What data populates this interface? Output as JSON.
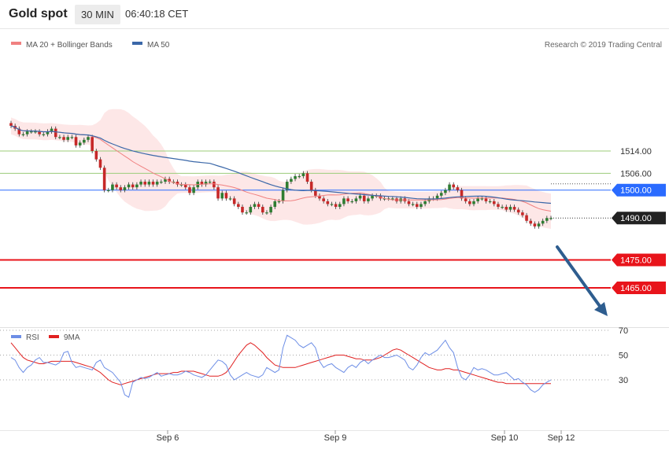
{
  "header": {
    "instrument": "Gold spot",
    "timeframe": "30 MIN",
    "time": "06:40:18 CET"
  },
  "legend": {
    "ma20_bb": "MA 20 + Bollinger Bands",
    "ma50": "MA 50",
    "copyright": "Research © 2019 Trading Central"
  },
  "rsi_legend": {
    "rsi": "RSI",
    "ma9": "9MA"
  },
  "colors": {
    "support_line": "#2a6bff",
    "resistance_line": "#9ccc7a",
    "target_line": "#e8141b",
    "current_price": "#222222",
    "arrow": "#2e5d8f",
    "ma20": "#f08080",
    "ma50": "#3a67a8",
    "rsi": "#6d8ee6",
    "rsi_ma": "#e02020",
    "bull_candle": "#2e7d32",
    "bear_candle": "#c62828"
  },
  "chart_data": [
    {
      "type": "candlestick",
      "title": "Gold spot",
      "price_levels": [
        {
          "label": "1514.00",
          "value": 1514,
          "kind": "resistance"
        },
        {
          "label": "1506.00",
          "value": 1506,
          "kind": "resistance"
        },
        {
          "label": "1500.00",
          "value": 1500,
          "kind": "pivot"
        },
        {
          "label": "1490.00",
          "value": 1490,
          "kind": "last"
        },
        {
          "label": "1475.00",
          "value": 1475,
          "kind": "target"
        },
        {
          "label": "1465.00",
          "value": 1465,
          "kind": "target"
        }
      ],
      "x_ticks": [
        "Sep 6",
        "Sep 9",
        "Sep 10",
        "Sep 12"
      ],
      "series": [
        {
          "name": "MA 20 + Bollinger Bands"
        },
        {
          "name": "MA 50"
        }
      ],
      "closes": [
        1523,
        1522,
        1520,
        1520,
        1521,
        1521,
        1521,
        1520,
        1520,
        1521,
        1522,
        1519,
        1519,
        1518,
        1519,
        1519,
        1516,
        1517,
        1518,
        1519,
        1514,
        1511,
        1508,
        1500,
        1500,
        1502,
        1501,
        1500,
        1501,
        1502,
        1501,
        1502,
        1503,
        1502,
        1503,
        1502,
        1503,
        1503,
        1504,
        1503,
        1503,
        1502,
        1502,
        1501,
        1499,
        1501,
        1503,
        1502,
        1503,
        1503,
        1501,
        1497,
        1499,
        1497,
        1497,
        1495,
        1494,
        1492,
        1492,
        1494,
        1495,
        1494,
        1492,
        1492,
        1494,
        1496,
        1496,
        1500,
        1503,
        1504,
        1505,
        1505,
        1506,
        1503,
        1500,
        1498,
        1497,
        1496,
        1495,
        1495,
        1494,
        1495,
        1497,
        1496,
        1496,
        1497,
        1498,
        1496,
        1497,
        1498,
        1498,
        1497,
        1497,
        1497,
        1497,
        1496,
        1497,
        1496,
        1495,
        1495,
        1494,
        1495,
        1496,
        1497,
        1497,
        1498,
        1499,
        1500,
        1502,
        1501,
        1500,
        1497,
        1496,
        1495,
        1496,
        1497,
        1497,
        1496,
        1496,
        1495,
        1494,
        1494,
        1493,
        1494,
        1493,
        1492,
        1491,
        1489,
        1488,
        1487,
        1488,
        1489,
        1490,
        1490
      ],
      "y_range": [
        1460,
        1530
      ]
    },
    {
      "type": "line",
      "title": "RSI",
      "series": [
        {
          "name": "RSI"
        },
        {
          "name": "9MA"
        }
      ],
      "y_ticks": [
        30,
        50,
        70
      ],
      "rsi": [
        48,
        46,
        40,
        36,
        40,
        42,
        46,
        48,
        44,
        44,
        43,
        42,
        44,
        52,
        53,
        44,
        40,
        41,
        40,
        39,
        38,
        44,
        46,
        40,
        38,
        36,
        32,
        28,
        18,
        16,
        28,
        30,
        32,
        31,
        32,
        34,
        36,
        33,
        34,
        35,
        34,
        34,
        35,
        37,
        36,
        34,
        33,
        32,
        34,
        38,
        42,
        46,
        45,
        42,
        34,
        30,
        32,
        34,
        36,
        34,
        33,
        32,
        34,
        40,
        38,
        36,
        38,
        56,
        66,
        64,
        62,
        58,
        56,
        58,
        60,
        56,
        45,
        40,
        42,
        43,
        40,
        38,
        36,
        40,
        42,
        40,
        44,
        46,
        43,
        46,
        48,
        50,
        48,
        48,
        49,
        50,
        48,
        46,
        40,
        38,
        42,
        48,
        52,
        50,
        52,
        54,
        58,
        62,
        56,
        52,
        40,
        32,
        30,
        34,
        40,
        38,
        39,
        38,
        36,
        34,
        34,
        35,
        36,
        33,
        30,
        31,
        28,
        26,
        22,
        20,
        22,
        26,
        28,
        30
      ],
      "rsi_ma": [
        60,
        56,
        52,
        48,
        46,
        45,
        44,
        43,
        43,
        44,
        45,
        45,
        45,
        45,
        45,
        45,
        44,
        43,
        42,
        41,
        40,
        38,
        36,
        33,
        30,
        28,
        27,
        26,
        27,
        28,
        29,
        30,
        31,
        32,
        33,
        34,
        35,
        35,
        35,
        35,
        36,
        36,
        37,
        37,
        37,
        37,
        36,
        35,
        34,
        33,
        33,
        33,
        34,
        36,
        40,
        45,
        50,
        54,
        58,
        60,
        58,
        55,
        52,
        48,
        45,
        42,
        41,
        40,
        40,
        40,
        40,
        41,
        42,
        43,
        44,
        45,
        46,
        47,
        48,
        49,
        50,
        50,
        50,
        49,
        48,
        47,
        47,
        46,
        46,
        46,
        47,
        48,
        50,
        52,
        54,
        55,
        54,
        52,
        50,
        48,
        46,
        44,
        42,
        40,
        39,
        38,
        38,
        39,
        39,
        38,
        38,
        37,
        36,
        35,
        34,
        33,
        32,
        31,
        30,
        29,
        28,
        28,
        27,
        27,
        27,
        27,
        27,
        27,
        27,
        27,
        27,
        27,
        27,
        27
      ]
    }
  ]
}
